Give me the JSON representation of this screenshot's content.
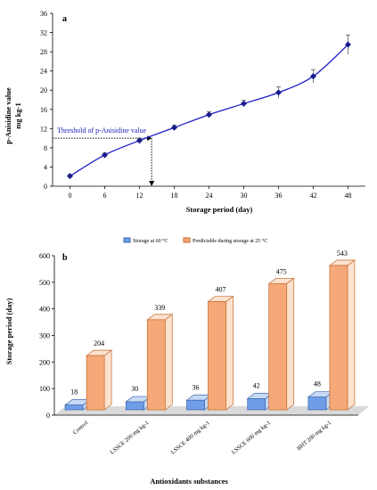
{
  "colors": {
    "line": "#1f1fc8",
    "marker": "#1a1a8c",
    "threshold_text": "#2020c0",
    "bar_60": "#6f9ee6",
    "bar_25": "#f5a978",
    "bar_25_light": "#fde2cf",
    "bar_60_light": "#c8daf6",
    "floor": "#d9d9d9"
  },
  "chart_data": [
    {
      "type": "line",
      "panel_label": "a",
      "ylabel_line1": "p-Anisidine value",
      "ylabel_line2": "mg kg-1",
      "xlabel": "Storage period (day)",
      "ylim": [
        0,
        36
      ],
      "xlim": [
        -3,
        51
      ],
      "yticks": [
        0,
        4,
        8,
        12,
        16,
        20,
        24,
        28,
        32,
        36
      ],
      "xticks": [
        0,
        6,
        12,
        18,
        24,
        30,
        36,
        42,
        48
      ],
      "series": [
        {
          "x": [
            0,
            6,
            12,
            18,
            24,
            30,
            36,
            42,
            48
          ],
          "y": [
            2.1,
            6.5,
            9.5,
            12.2,
            14.9,
            17.2,
            19.5,
            22.9,
            29.5
          ],
          "err": [
            0.3,
            0.4,
            0.5,
            0.5,
            0.6,
            0.7,
            1.2,
            1.4,
            2.0
          ]
        }
      ],
      "threshold": {
        "label": "Threshold of p-Anisidine value",
        "y": 10,
        "x": 14.1
      }
    },
    {
      "type": "bar",
      "panel_label": "b",
      "ylabel": "Storage period (day)",
      "xlabel": "Antioxidants substances",
      "ylim": [
        0,
        600
      ],
      "yticks": [
        0,
        100,
        200,
        300,
        400,
        500,
        600
      ],
      "categories": [
        "Control",
        "LSSCE 200  mg kg-1",
        "LSSCE 400  mg kg-1",
        "LSSCE 600  mg kg-1",
        "BHT 200  mg kg-1"
      ],
      "series": [
        {
          "name": "Storage at 60 °C",
          "values": [
            18,
            30,
            36,
            42,
            48
          ]
        },
        {
          "name": "Predictable during storage at 25 °C",
          "values": [
            204,
            339,
            407,
            475,
            543
          ]
        }
      ],
      "legend": "top"
    }
  ]
}
